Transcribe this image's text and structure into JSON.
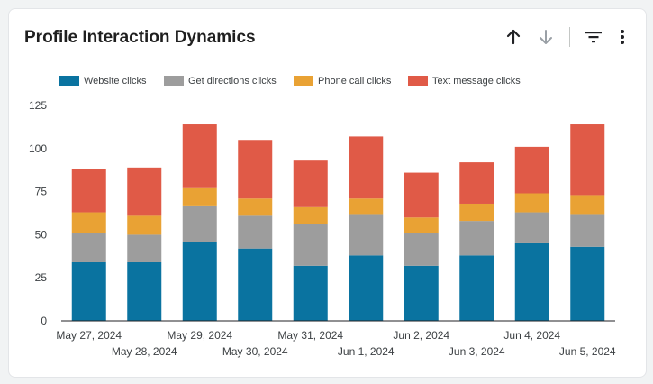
{
  "card": {
    "title": "Profile Interaction Dynamics"
  },
  "toolbar": {
    "sort_ascending_icon": "arrow-up-icon",
    "sort_descending_icon": "arrow-down-icon",
    "filter_icon": "filter-icon",
    "more_icon": "more-vert-icon"
  },
  "colors": {
    "website": "#0a73a0",
    "directions": "#9d9d9d",
    "phone": "#e9a234",
    "text": "#e05a47"
  },
  "chart_data": {
    "type": "bar",
    "stacked": true,
    "categories": [
      "May 27, 2024",
      "May 28, 2024",
      "May 29, 2024",
      "May 30, 2024",
      "May 31, 2024",
      "Jun 1, 2024",
      "Jun 2, 2024",
      "Jun 3, 2024",
      "Jun 4, 2024",
      "Jun 5, 2024"
    ],
    "series": [
      {
        "name": "Website clicks",
        "values": [
          34,
          34,
          46,
          42,
          32,
          38,
          32,
          38,
          45,
          43
        ]
      },
      {
        "name": "Get directions clicks",
        "values": [
          17,
          16,
          21,
          19,
          24,
          24,
          19,
          20,
          18,
          19
        ]
      },
      {
        "name": "Phone call clicks",
        "values": [
          12,
          11,
          10,
          10,
          10,
          9,
          9,
          10,
          11,
          11
        ]
      },
      {
        "name": "Text message clicks",
        "values": [
          25,
          28,
          37,
          34,
          27,
          36,
          26,
          24,
          27,
          41
        ]
      }
    ],
    "y_ticks": [
      "0",
      "25",
      "50",
      "75",
      "100",
      "125"
    ],
    "ylim": [
      0,
      125
    ],
    "legend_position": "top-left",
    "grid": false,
    "title": "",
    "xlabel": "",
    "ylabel": ""
  }
}
